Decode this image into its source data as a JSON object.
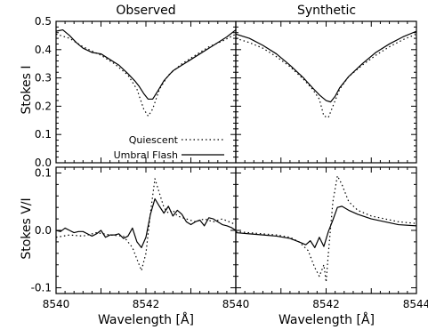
{
  "chart_data": [
    {
      "panel": "observed-stokes-i",
      "type": "line",
      "title": "Observed",
      "ylabel": "Stokes I",
      "xlabel": "",
      "xlim": [
        8540,
        8544
      ],
      "ylim": [
        0.0,
        0.5
      ],
      "yticks": [
        "0.0",
        "0.1",
        "0.2",
        "0.3",
        "0.4",
        "0.5"
      ],
      "series": [
        {
          "name": "Umbral Flash",
          "style": "solid",
          "x": [
            8540.0,
            8540.15,
            8540.3,
            8540.45,
            8540.6,
            8540.8,
            8541.0,
            8541.2,
            8541.4,
            8541.6,
            8541.75,
            8541.85,
            8541.95,
            8542.05,
            8542.15,
            8542.25,
            8542.4,
            8542.6,
            8542.8,
            8543.0,
            8543.2,
            8543.4,
            8543.6,
            8543.8,
            8544.0
          ],
          "y": [
            0.465,
            0.47,
            0.45,
            0.425,
            0.405,
            0.39,
            0.385,
            0.365,
            0.345,
            0.315,
            0.29,
            0.27,
            0.245,
            0.225,
            0.225,
            0.25,
            0.29,
            0.325,
            0.345,
            0.365,
            0.385,
            0.405,
            0.425,
            0.445,
            0.47
          ]
        },
        {
          "name": "Quiescent",
          "style": "dotted",
          "x": [
            8540.0,
            8540.3,
            8540.6,
            8541.0,
            8541.3,
            8541.6,
            8541.8,
            8541.95,
            8542.05,
            8542.15,
            8542.3,
            8542.5,
            8542.8,
            8543.1,
            8543.4,
            8543.7,
            8544.0
          ],
          "y": [
            0.455,
            0.44,
            0.41,
            0.38,
            0.35,
            0.31,
            0.26,
            0.19,
            0.165,
            0.19,
            0.26,
            0.31,
            0.35,
            0.38,
            0.41,
            0.43,
            0.455
          ]
        }
      ],
      "legend": [
        {
          "label": "Quiescent",
          "style": "dotted"
        },
        {
          "label": "Umbral Flash",
          "style": "solid"
        }
      ]
    },
    {
      "panel": "synthetic-stokes-i",
      "type": "line",
      "title": "Synthetic",
      "ylabel": "",
      "xlabel": "",
      "xlim": [
        8540,
        8544
      ],
      "ylim": [
        0.0,
        0.5
      ],
      "series": [
        {
          "name": "Umbral Flash",
          "style": "solid",
          "x": [
            8540.0,
            8540.3,
            8540.6,
            8540.9,
            8541.2,
            8541.5,
            8541.7,
            8541.85,
            8542.0,
            8542.1,
            8542.2,
            8542.3,
            8542.5,
            8542.8,
            8543.1,
            8543.4,
            8543.7,
            8544.0
          ],
          "y": [
            0.455,
            0.44,
            0.415,
            0.385,
            0.345,
            0.3,
            0.265,
            0.24,
            0.22,
            0.215,
            0.235,
            0.265,
            0.305,
            0.35,
            0.39,
            0.42,
            0.445,
            0.465
          ]
        },
        {
          "name": "Quiescent",
          "style": "dotted",
          "x": [
            8540.0,
            8540.3,
            8540.6,
            8540.9,
            8541.2,
            8541.5,
            8541.7,
            8541.85,
            8541.95,
            8542.05,
            8542.15,
            8542.3,
            8542.5,
            8542.8,
            8543.1,
            8543.4,
            8543.7,
            8544.0
          ],
          "y": [
            0.44,
            0.425,
            0.405,
            0.375,
            0.34,
            0.295,
            0.26,
            0.225,
            0.165,
            0.16,
            0.2,
            0.26,
            0.305,
            0.345,
            0.38,
            0.41,
            0.435,
            0.455
          ]
        }
      ]
    },
    {
      "panel": "observed-stokes-v",
      "type": "line",
      "title": "",
      "ylabel": "Stokes V/I",
      "xlabel": "Wavelength [Å]",
      "xlim": [
        8540,
        8544
      ],
      "ylim": [
        -0.11,
        0.11
      ],
      "xticks": [
        "8540",
        "8542"
      ],
      "yticks": [
        "-0.1",
        "0.0",
        "0.1"
      ],
      "series": [
        {
          "name": "Umbral Flash",
          "style": "solid",
          "x": [
            8540.0,
            8540.1,
            8540.2,
            8540.3,
            8540.4,
            8540.5,
            8540.6,
            8540.7,
            8540.8,
            8540.9,
            8541.0,
            8541.1,
            8541.2,
            8541.3,
            8541.4,
            8541.5,
            8541.6,
            8541.7,
            8541.8,
            8541.9,
            8542.0,
            8542.1,
            8542.2,
            8542.3,
            8542.4,
            8542.5,
            8542.6,
            8542.7,
            8542.8,
            8542.9,
            8543.0,
            8543.1,
            8543.2,
            8543.3,
            8543.4,
            8543.5,
            8543.6,
            8543.7,
            8543.8,
            8543.9,
            8544.0
          ],
          "y": [
            0.0,
            -0.002,
            0.004,
            0.0,
            -0.004,
            -0.002,
            -0.002,
            -0.006,
            -0.01,
            -0.006,
            0.0,
            -0.012,
            -0.008,
            -0.008,
            -0.006,
            -0.014,
            -0.01,
            0.004,
            -0.02,
            -0.03,
            -0.012,
            0.028,
            0.055,
            0.042,
            0.03,
            0.042,
            0.025,
            0.035,
            0.028,
            0.015,
            0.01,
            0.015,
            0.018,
            0.008,
            0.022,
            0.02,
            0.015,
            0.01,
            0.008,
            0.005,
            0.0
          ]
        },
        {
          "name": "Quiescent",
          "style": "dotted",
          "x": [
            8540.0,
            8540.3,
            8540.6,
            8540.9,
            8541.2,
            8541.5,
            8541.7,
            8541.8,
            8541.9,
            8542.0,
            8542.1,
            8542.2,
            8542.3,
            8542.4,
            8542.5,
            8542.6,
            8542.7,
            8542.9,
            8543.1,
            8543.3,
            8543.5,
            8543.7,
            8544.0
          ],
          "y": [
            -0.012,
            -0.008,
            -0.01,
            -0.004,
            -0.008,
            -0.01,
            -0.03,
            -0.05,
            -0.07,
            -0.04,
            0.03,
            0.09,
            0.065,
            0.04,
            0.03,
            0.035,
            0.025,
            0.02,
            0.015,
            0.02,
            0.015,
            0.02,
            0.01
          ]
        }
      ]
    },
    {
      "panel": "synthetic-stokes-v",
      "type": "line",
      "title": "",
      "ylabel": "",
      "xlabel": "Wavelength [Å]",
      "xlim": [
        8540,
        8544
      ],
      "ylim": [
        -0.11,
        0.11
      ],
      "xticks": [
        "8540",
        "8542",
        "8544"
      ],
      "series": [
        {
          "name": "Umbral Flash",
          "style": "solid",
          "x": [
            8540.0,
            8540.3,
            8540.6,
            8540.9,
            8541.2,
            8541.4,
            8541.55,
            8541.65,
            8541.75,
            8541.85,
            8541.95,
            8542.05,
            8542.15,
            8542.25,
            8542.35,
            8542.5,
            8542.7,
            8543.0,
            8543.3,
            8543.6,
            8544.0
          ],
          "y": [
            -0.004,
            -0.006,
            -0.008,
            -0.01,
            -0.014,
            -0.02,
            -0.025,
            -0.018,
            -0.03,
            -0.012,
            -0.028,
            -0.002,
            0.018,
            0.04,
            0.042,
            0.035,
            0.028,
            0.02,
            0.015,
            0.01,
            0.008
          ]
        },
        {
          "name": "Quiescent",
          "style": "dotted",
          "x": [
            8540.0,
            8540.3,
            8540.6,
            8540.9,
            8541.2,
            8541.4,
            8541.6,
            8541.75,
            8541.85,
            8541.95,
            8542.0,
            8542.05,
            8542.15,
            8542.25,
            8542.35,
            8542.5,
            8542.7,
            8543.0,
            8543.3,
            8543.6,
            8544.0
          ],
          "y": [
            -0.002,
            -0.004,
            -0.006,
            -0.008,
            -0.012,
            -0.02,
            -0.035,
            -0.065,
            -0.08,
            -0.06,
            -0.09,
            -0.04,
            0.05,
            0.095,
            0.08,
            0.05,
            0.035,
            0.025,
            0.02,
            0.015,
            0.012
          ]
        }
      ]
    }
  ]
}
